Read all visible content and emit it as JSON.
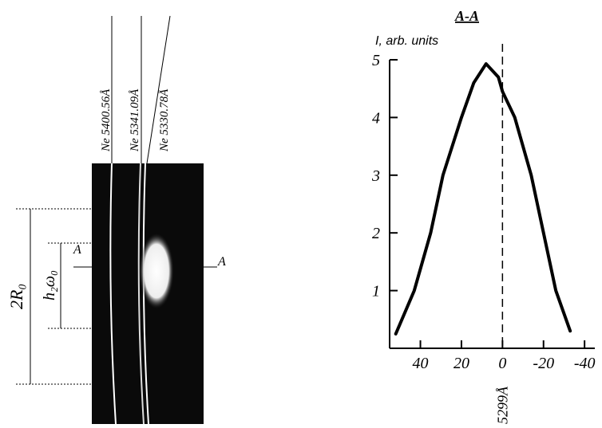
{
  "diagram": {
    "lines": [
      "Ne 5400.56Å",
      "Ne 5341.09Å",
      "Ne 5330.78Å"
    ],
    "outer_dimension": "2R₀",
    "inner_dimension": "h₂ω₀",
    "section_left": "A",
    "section_right": "A"
  },
  "chart_data": {
    "type": "line",
    "title": "A-A",
    "y_label": "I, arb. units",
    "x": [
      52,
      43,
      35,
      29,
      20,
      14,
      8,
      2,
      0,
      -6,
      -14,
      -20,
      -26,
      -33
    ],
    "values": [
      0.25,
      1,
      2,
      3,
      4,
      4.6,
      4.93,
      4.7,
      4.45,
      4,
      3,
      2,
      1,
      0.3
    ],
    "color": "#000000",
    "xlim": [
      55,
      -45
    ],
    "xticks": [
      40,
      20,
      0,
      -20,
      -40
    ],
    "ylim": [
      0,
      5
    ],
    "yticks": [
      1,
      2,
      3,
      4,
      5
    ],
    "marker_line_x": 0,
    "marker_label": "5299Å"
  }
}
